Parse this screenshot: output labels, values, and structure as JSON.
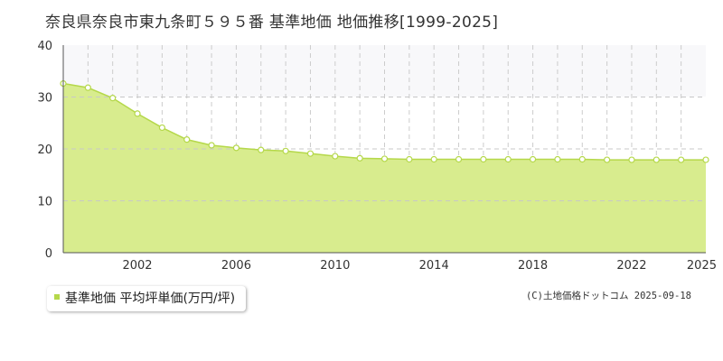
{
  "chart_data": {
    "type": "area",
    "title": "奈良県奈良市東九条町５９５番 基準地価 地価推移[1999-2025]",
    "x": [
      1999,
      2000,
      2001,
      2002,
      2003,
      2004,
      2005,
      2006,
      2007,
      2008,
      2009,
      2010,
      2011,
      2012,
      2013,
      2014,
      2015,
      2016,
      2017,
      2018,
      2019,
      2020,
      2021,
      2022,
      2023,
      2024,
      2025
    ],
    "series": [
      {
        "name": "基準地価 平均坪単価(万円/坪)",
        "values": [
          32.6,
          31.8,
          29.8,
          26.8,
          24.1,
          21.8,
          20.7,
          20.2,
          19.8,
          19.6,
          19.1,
          18.6,
          18.2,
          18.1,
          18.0,
          18.0,
          18.0,
          18.0,
          18.0,
          18.0,
          18.0,
          18.0,
          17.9,
          17.9,
          17.9,
          17.9,
          17.9
        ]
      }
    ],
    "x_tick_labels": [
      "2002",
      "2006",
      "2010",
      "2014",
      "2018",
      "2022",
      "2025"
    ],
    "y_ticks": [
      0,
      10,
      20,
      30,
      40
    ],
    "ylim": [
      0,
      40
    ],
    "xlim": [
      1999,
      2025
    ],
    "grid": true,
    "legend_position": "bottom-left",
    "colors": {
      "fill": "#d8ec8e",
      "line": "#b5d84a",
      "marker_fill": "#ffffff"
    }
  },
  "credit": "(C)土地価格ドットコム 2025-09-18"
}
